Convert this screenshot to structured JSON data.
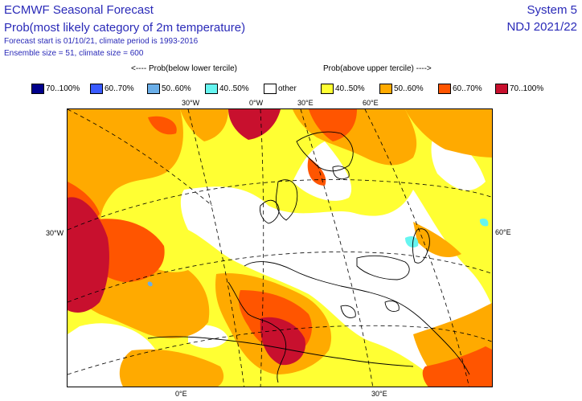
{
  "header": {
    "title": "ECMWF Seasonal Forecast",
    "subtitle": "Prob(most likely category of 2m temperature)",
    "forecast_info": "Forecast start is 01/10/21, climate period is 1993-2016",
    "ensemble_info": "Ensemble size = 51, climate size = 600",
    "system": "System 5",
    "season": "NDJ 2021/22"
  },
  "legend": {
    "below_header": "<---- Prob(below lower tercile)",
    "above_header": "Prob(above upper tercile) ---->",
    "items": [
      {
        "label": "70..100%",
        "color": "#00008b"
      },
      {
        "label": "60..70%",
        "color": "#3a5bff"
      },
      {
        "label": "50..60%",
        "color": "#6aaee8"
      },
      {
        "label": "40..50%",
        "color": "#66f5f0"
      },
      {
        "label": "other",
        "color": "#ffffff"
      },
      {
        "label": "40..50%",
        "color": "#ffff33"
      },
      {
        "label": "50..60%",
        "color": "#ffaa00"
      },
      {
        "label": "60..70%",
        "color": "#ff5500"
      },
      {
        "label": "70..100%",
        "color": "#c8102e"
      }
    ]
  },
  "map": {
    "grid_labels": {
      "top_30w": "30°W",
      "top_0w": "0°W",
      "top_30e": "30°E",
      "top_60e": "60°E",
      "left_30w": "30°W",
      "right_60e": "60°E",
      "bottom_0e": "0°E",
      "bottom_30e": "30°E"
    }
  }
}
